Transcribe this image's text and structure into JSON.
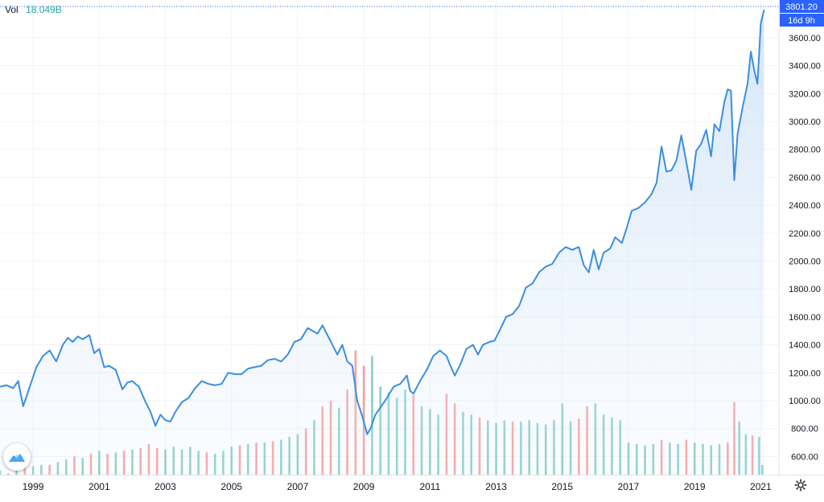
{
  "legend": {
    "label": "Vol",
    "value": "18.049B"
  },
  "price_badge": {
    "price": "3801.20",
    "countdown": "16d 9h"
  },
  "colors": {
    "line": "#3c8ee0",
    "area": "#e3eefb",
    "vol_up": "#26a69a",
    "vol_down": "#ef5350",
    "last_price": "#2962ff"
  },
  "icons": {
    "settings": "gear-icon",
    "logo": "tradingview-cloud-icon"
  },
  "chart_data": {
    "type": "line",
    "title": "",
    "xlabel": "",
    "ylabel": "",
    "ylim": [
      470,
      3870
    ],
    "x_range": [
      1998.0,
      2021.55
    ],
    "grid": true,
    "yticks": [
      {
        "value": 600,
        "label": "600.00"
      },
      {
        "value": 800,
        "label": "800.00"
      },
      {
        "value": 1000,
        "label": "1000.00"
      },
      {
        "value": 1200,
        "label": "1200.00"
      },
      {
        "value": 1400,
        "label": "1400.00"
      },
      {
        "value": 1600,
        "label": "1600.00"
      },
      {
        "value": 1800,
        "label": "1800.00"
      },
      {
        "value": 2000,
        "label": "2000.00"
      },
      {
        "value": 2200,
        "label": "2200.00"
      },
      {
        "value": 2400,
        "label": "2400.00"
      },
      {
        "value": 2600,
        "label": "2600.00"
      },
      {
        "value": 2800,
        "label": "2800.00"
      },
      {
        "value": 3000,
        "label": "3000.00"
      },
      {
        "value": 3200,
        "label": "3200.00"
      },
      {
        "value": 3400,
        "label": "3400.00"
      },
      {
        "value": 3600,
        "label": "3600.00"
      }
    ],
    "xticks": [
      {
        "value": 1999,
        "label": "1999"
      },
      {
        "value": 2001,
        "label": "2001"
      },
      {
        "value": 2003,
        "label": "2003"
      },
      {
        "value": 2005,
        "label": "2005"
      },
      {
        "value": 2007,
        "label": "2007"
      },
      {
        "value": 2009,
        "label": "2009"
      },
      {
        "value": 2011,
        "label": "2011"
      },
      {
        "value": 2013,
        "label": "2013"
      },
      {
        "value": 2015,
        "label": "2015"
      },
      {
        "value": 2017,
        "label": "2017"
      },
      {
        "value": 2019,
        "label": "2019"
      },
      {
        "value": 2021,
        "label": "2021"
      }
    ],
    "last_price": 3801.2,
    "price_series": [
      [
        1998.0,
        1100
      ],
      [
        1998.2,
        1110
      ],
      [
        1998.4,
        1090
      ],
      [
        1998.55,
        1140
      ],
      [
        1998.7,
        960
      ],
      [
        1998.9,
        1100
      ],
      [
        1999.1,
        1240
      ],
      [
        1999.3,
        1320
      ],
      [
        1999.5,
        1360
      ],
      [
        1999.7,
        1280
      ],
      [
        1999.9,
        1400
      ],
      [
        2000.05,
        1450
      ],
      [
        2000.2,
        1420
      ],
      [
        2000.35,
        1460
      ],
      [
        2000.5,
        1440
      ],
      [
        2000.7,
        1470
      ],
      [
        2000.85,
        1340
      ],
      [
        2001.0,
        1370
      ],
      [
        2001.15,
        1240
      ],
      [
        2001.3,
        1250
      ],
      [
        2001.5,
        1220
      ],
      [
        2001.7,
        1080
      ],
      [
        2001.85,
        1130
      ],
      [
        2002.0,
        1140
      ],
      [
        2002.2,
        1100
      ],
      [
        2002.4,
        990
      ],
      [
        2002.55,
        920
      ],
      [
        2002.7,
        820
      ],
      [
        2002.85,
        900
      ],
      [
        2003.0,
        860
      ],
      [
        2003.15,
        850
      ],
      [
        2003.3,
        920
      ],
      [
        2003.5,
        990
      ],
      [
        2003.7,
        1020
      ],
      [
        2003.9,
        1090
      ],
      [
        2004.1,
        1140
      ],
      [
        2004.3,
        1120
      ],
      [
        2004.5,
        1110
      ],
      [
        2004.7,
        1120
      ],
      [
        2004.9,
        1200
      ],
      [
        2005.1,
        1190
      ],
      [
        2005.3,
        1190
      ],
      [
        2005.5,
        1230
      ],
      [
        2005.7,
        1240
      ],
      [
        2005.9,
        1250
      ],
      [
        2006.1,
        1290
      ],
      [
        2006.3,
        1300
      ],
      [
        2006.5,
        1280
      ],
      [
        2006.7,
        1330
      ],
      [
        2006.9,
        1420
      ],
      [
        2007.1,
        1440
      ],
      [
        2007.3,
        1520
      ],
      [
        2007.45,
        1500
      ],
      [
        2007.6,
        1480
      ],
      [
        2007.75,
        1540
      ],
      [
        2007.9,
        1470
      ],
      [
        2008.05,
        1400
      ],
      [
        2008.2,
        1330
      ],
      [
        2008.35,
        1400
      ],
      [
        2008.5,
        1280
      ],
      [
        2008.65,
        1250
      ],
      [
        2008.8,
        1000
      ],
      [
        2008.95,
        890
      ],
      [
        2009.1,
        760
      ],
      [
        2009.2,
        800
      ],
      [
        2009.35,
        900
      ],
      [
        2009.5,
        950
      ],
      [
        2009.7,
        1020
      ],
      [
        2009.9,
        1100
      ],
      [
        2010.1,
        1120
      ],
      [
        2010.3,
        1180
      ],
      [
        2010.4,
        1070
      ],
      [
        2010.5,
        1050
      ],
      [
        2010.7,
        1140
      ],
      [
        2010.9,
        1220
      ],
      [
        2011.1,
        1320
      ],
      [
        2011.3,
        1360
      ],
      [
        2011.5,
        1320
      ],
      [
        2011.6,
        1260
      ],
      [
        2011.75,
        1180
      ],
      [
        2011.9,
        1250
      ],
      [
        2012.1,
        1370
      ],
      [
        2012.3,
        1400
      ],
      [
        2012.45,
        1330
      ],
      [
        2012.6,
        1400
      ],
      [
        2012.8,
        1420
      ],
      [
        2012.95,
        1430
      ],
      [
        2013.1,
        1500
      ],
      [
        2013.3,
        1600
      ],
      [
        2013.5,
        1620
      ],
      [
        2013.7,
        1680
      ],
      [
        2013.9,
        1810
      ],
      [
        2014.1,
        1840
      ],
      [
        2014.3,
        1920
      ],
      [
        2014.5,
        1960
      ],
      [
        2014.7,
        1980
      ],
      [
        2014.9,
        2060
      ],
      [
        2015.1,
        2100
      ],
      [
        2015.3,
        2080
      ],
      [
        2015.5,
        2100
      ],
      [
        2015.65,
        1970
      ],
      [
        2015.8,
        1920
      ],
      [
        2015.95,
        2080
      ],
      [
        2016.1,
        1940
      ],
      [
        2016.25,
        2060
      ],
      [
        2016.45,
        2090
      ],
      [
        2016.6,
        2170
      ],
      [
        2016.8,
        2130
      ],
      [
        2016.95,
        2240
      ],
      [
        2017.1,
        2360
      ],
      [
        2017.3,
        2380
      ],
      [
        2017.5,
        2420
      ],
      [
        2017.7,
        2480
      ],
      [
        2017.85,
        2560
      ],
      [
        2018.0,
        2820
      ],
      [
        2018.15,
        2640
      ],
      [
        2018.3,
        2650
      ],
      [
        2018.45,
        2720
      ],
      [
        2018.6,
        2900
      ],
      [
        2018.75,
        2710
      ],
      [
        2018.9,
        2510
      ],
      [
        2019.05,
        2790
      ],
      [
        2019.2,
        2840
      ],
      [
        2019.35,
        2940
      ],
      [
        2019.5,
        2750
      ],
      [
        2019.6,
        2980
      ],
      [
        2019.75,
        2930
      ],
      [
        2019.9,
        3140
      ],
      [
        2020.0,
        3230
      ],
      [
        2020.1,
        3220
      ],
      [
        2020.2,
        2580
      ],
      [
        2020.3,
        2910
      ],
      [
        2020.45,
        3100
      ],
      [
        2020.6,
        3270
      ],
      [
        2020.7,
        3500
      ],
      [
        2020.8,
        3370
      ],
      [
        2020.9,
        3270
      ],
      [
        2021.0,
        3700
      ],
      [
        2021.1,
        3800
      ]
    ],
    "volume_series": [
      [
        1998.0,
        500,
        "up"
      ],
      [
        1998.25,
        480,
        "down"
      ],
      [
        1998.5,
        500,
        "up"
      ],
      [
        1998.75,
        520,
        "down"
      ],
      [
        1999.0,
        530,
        "up"
      ],
      [
        1999.25,
        540,
        "up"
      ],
      [
        1999.5,
        540,
        "down"
      ],
      [
        1999.75,
        560,
        "up"
      ],
      [
        2000.0,
        580,
        "up"
      ],
      [
        2000.25,
        600,
        "down"
      ],
      [
        2000.5,
        590,
        "up"
      ],
      [
        2000.75,
        620,
        "down"
      ],
      [
        2001.0,
        640,
        "up"
      ],
      [
        2001.25,
        620,
        "down"
      ],
      [
        2001.5,
        630,
        "up"
      ],
      [
        2001.75,
        640,
        "down"
      ],
      [
        2002.0,
        650,
        "up"
      ],
      [
        2002.25,
        660,
        "down"
      ],
      [
        2002.5,
        690,
        "down"
      ],
      [
        2002.75,
        660,
        "down"
      ],
      [
        2003.0,
        650,
        "up"
      ],
      [
        2003.25,
        670,
        "up"
      ],
      [
        2003.5,
        650,
        "up"
      ],
      [
        2003.75,
        670,
        "up"
      ],
      [
        2004.0,
        640,
        "up"
      ],
      [
        2004.25,
        630,
        "down"
      ],
      [
        2004.5,
        620,
        "up"
      ],
      [
        2004.75,
        640,
        "up"
      ],
      [
        2005.0,
        670,
        "up"
      ],
      [
        2005.25,
        680,
        "down"
      ],
      [
        2005.5,
        690,
        "up"
      ],
      [
        2005.75,
        700,
        "down"
      ],
      [
        2006.0,
        700,
        "up"
      ],
      [
        2006.25,
        710,
        "down"
      ],
      [
        2006.5,
        720,
        "up"
      ],
      [
        2006.75,
        740,
        "up"
      ],
      [
        2007.0,
        760,
        "up"
      ],
      [
        2007.25,
        800,
        "down"
      ],
      [
        2007.5,
        860,
        "up"
      ],
      [
        2007.75,
        960,
        "down"
      ],
      [
        2008.0,
        1000,
        "down"
      ],
      [
        2008.25,
        950,
        "up"
      ],
      [
        2008.5,
        1080,
        "down"
      ],
      [
        2008.75,
        1360,
        "down"
      ],
      [
        2009.0,
        1250,
        "down"
      ],
      [
        2009.25,
        1320,
        "up"
      ],
      [
        2009.5,
        1100,
        "up"
      ],
      [
        2009.75,
        1060,
        "up"
      ],
      [
        2010.0,
        1020,
        "up"
      ],
      [
        2010.25,
        1080,
        "up"
      ],
      [
        2010.5,
        1040,
        "down"
      ],
      [
        2010.75,
        960,
        "up"
      ],
      [
        2011.0,
        940,
        "up"
      ],
      [
        2011.25,
        900,
        "up"
      ],
      [
        2011.5,
        1050,
        "down"
      ],
      [
        2011.75,
        980,
        "down"
      ],
      [
        2012.0,
        920,
        "up"
      ],
      [
        2012.25,
        900,
        "up"
      ],
      [
        2012.5,
        880,
        "down"
      ],
      [
        2012.75,
        860,
        "up"
      ],
      [
        2013.0,
        840,
        "up"
      ],
      [
        2013.25,
        860,
        "up"
      ],
      [
        2013.5,
        850,
        "down"
      ],
      [
        2013.75,
        850,
        "up"
      ],
      [
        2014.0,
        860,
        "up"
      ],
      [
        2014.25,
        840,
        "up"
      ],
      [
        2014.5,
        830,
        "up"
      ],
      [
        2014.75,
        860,
        "up"
      ],
      [
        2015.0,
        980,
        "up"
      ],
      [
        2015.25,
        850,
        "up"
      ],
      [
        2015.5,
        870,
        "down"
      ],
      [
        2015.75,
        960,
        "down"
      ],
      [
        2016.0,
        980,
        "up"
      ],
      [
        2016.25,
        900,
        "up"
      ],
      [
        2016.5,
        880,
        "up"
      ],
      [
        2016.75,
        860,
        "up"
      ],
      [
        2017.0,
        700,
        "up"
      ],
      [
        2017.25,
        690,
        "up"
      ],
      [
        2017.5,
        680,
        "up"
      ],
      [
        2017.75,
        690,
        "up"
      ],
      [
        2018.0,
        720,
        "down"
      ],
      [
        2018.25,
        700,
        "up"
      ],
      [
        2018.5,
        690,
        "up"
      ],
      [
        2018.75,
        720,
        "down"
      ],
      [
        2019.0,
        700,
        "up"
      ],
      [
        2019.25,
        690,
        "up"
      ],
      [
        2019.5,
        680,
        "up"
      ],
      [
        2019.75,
        690,
        "up"
      ],
      [
        2020.0,
        700,
        "down"
      ],
      [
        2020.2,
        990,
        "down"
      ],
      [
        2020.35,
        850,
        "up"
      ],
      [
        2020.55,
        760,
        "up"
      ],
      [
        2020.75,
        750,
        "down"
      ],
      [
        2020.95,
        740,
        "up"
      ],
      [
        2021.05,
        540,
        "up"
      ]
    ]
  }
}
